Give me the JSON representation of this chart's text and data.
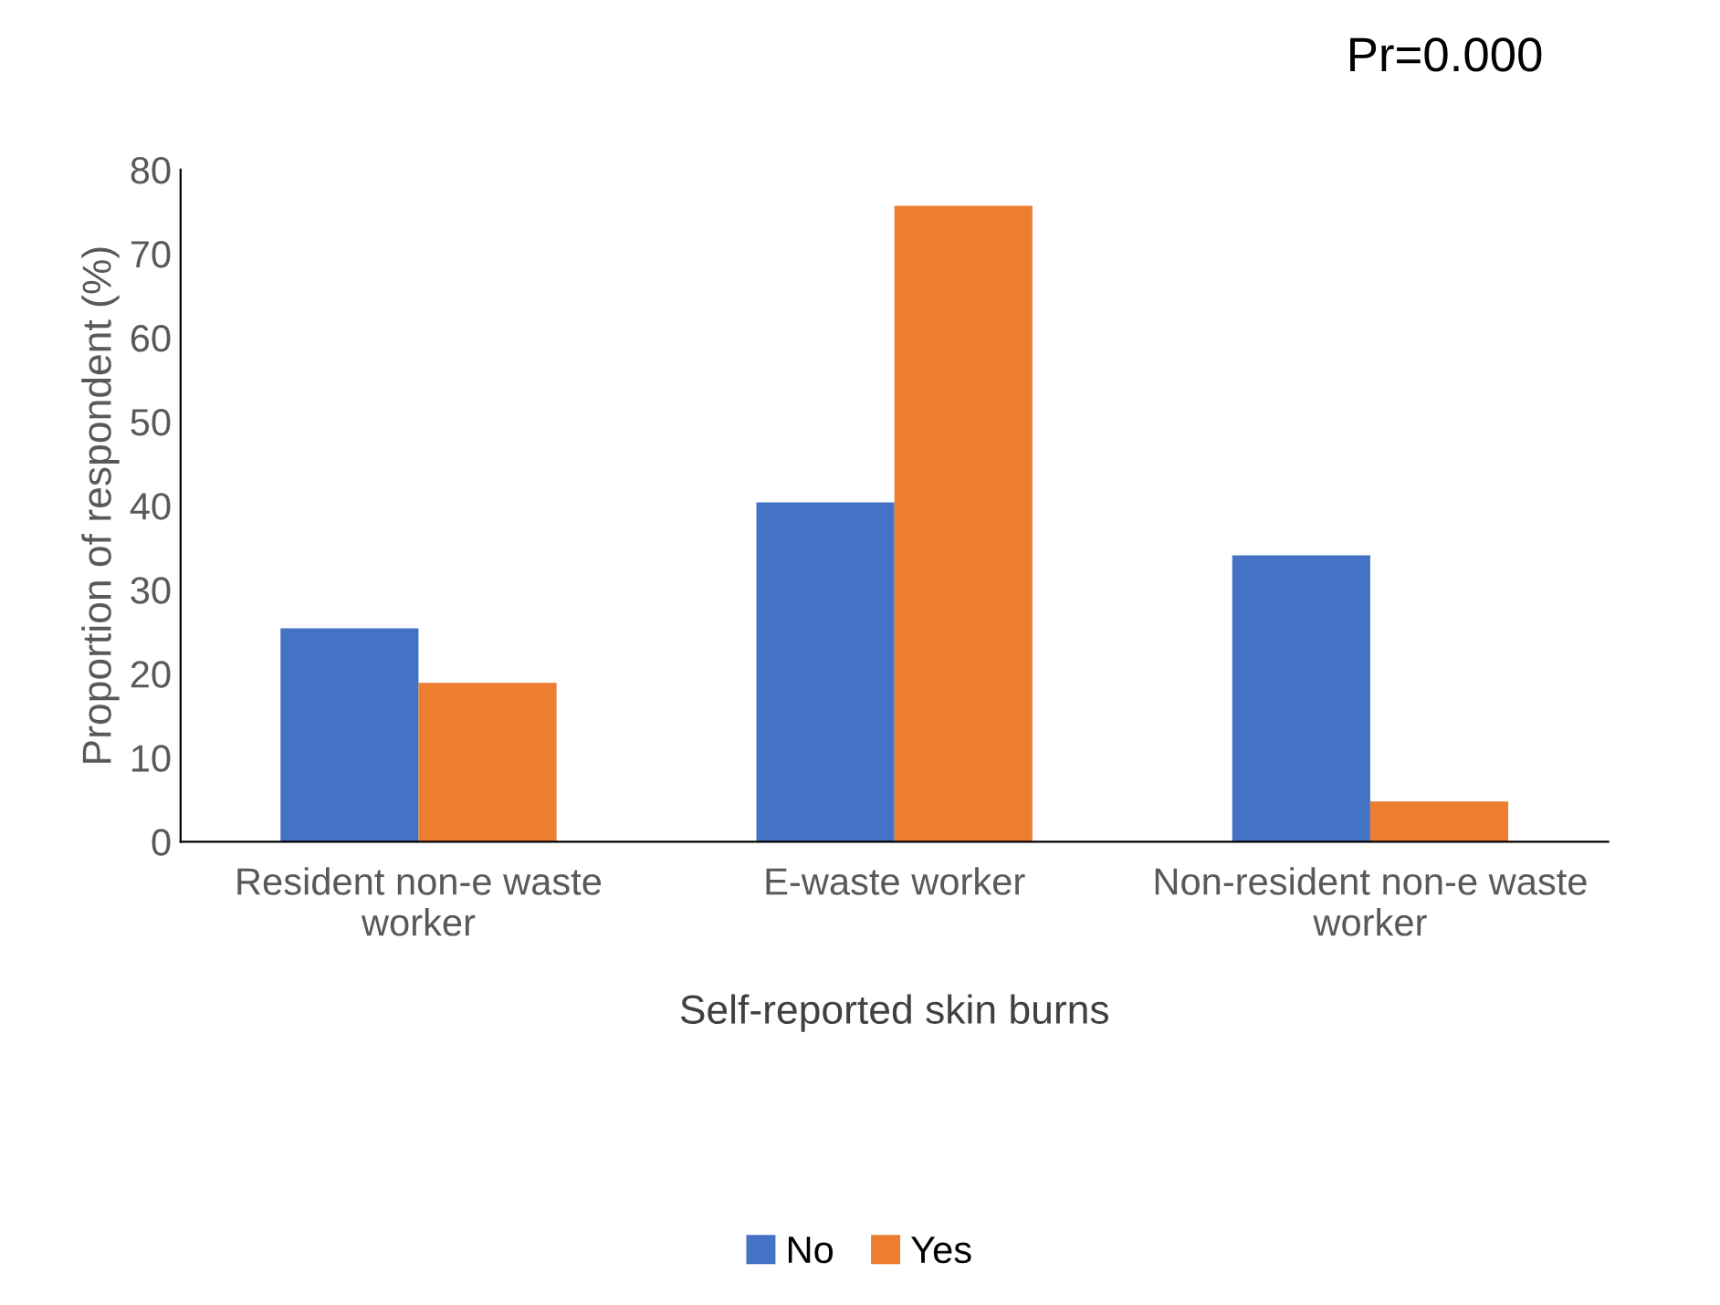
{
  "chart_data": {
    "type": "bar",
    "xlabel": "Self-reported skin burns",
    "ylabel": "Proportion of respondent (%)",
    "categories": [
      "Resident non-e waste\nworker",
      "E-waste worker",
      "Non-resident non-e waste\nworker"
    ],
    "series": [
      {
        "name": "No",
        "color": "#4472c4",
        "values": [
          25.4,
          40.4,
          34.1
        ]
      },
      {
        "name": "Yes",
        "color": "#ed7d31",
        "values": [
          18.9,
          75.7,
          4.8
        ]
      }
    ],
    "ylim": [
      0,
      80
    ],
    "yticks": [
      0,
      10,
      20,
      30,
      40,
      50,
      60,
      70,
      80
    ],
    "grid": false,
    "legend": "bottom",
    "annotations": [
      "Pr=0.000"
    ]
  }
}
